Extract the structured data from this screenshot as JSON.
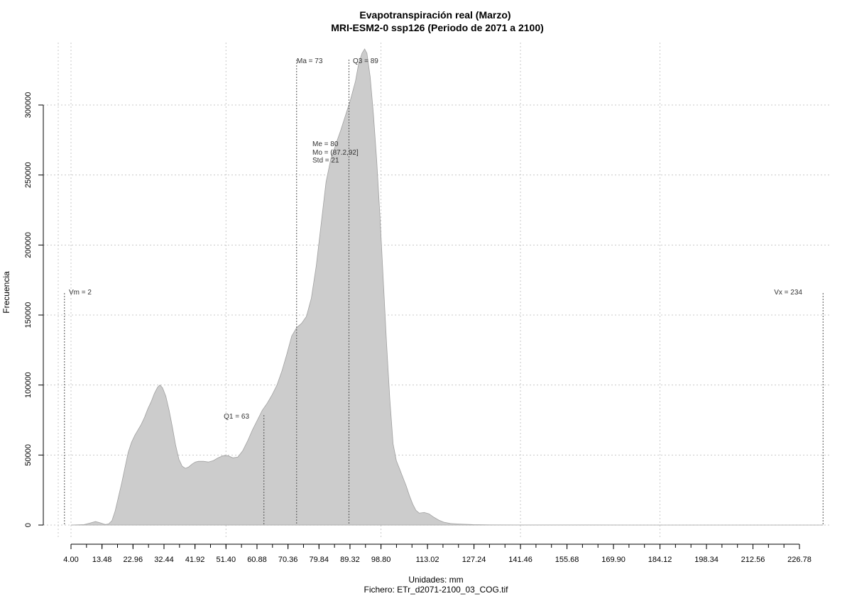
{
  "chart_data": {
    "type": "area",
    "title": "Evapotranspiración real (Marzo)",
    "subtitle": "MRI-ESM2-0 ssp126 (Periodo de 2071 a 2100)",
    "xlabel": "Unidades: mm",
    "file_label": "Fichero: ETr_d2071-2100_03_COG.tif",
    "ylabel": "Frecuencia",
    "xlim": [
      -1.5,
      235.5
    ],
    "ylim": [
      0,
      340000
    ],
    "x_ticks": [
      "4.00",
      "13.48",
      "22.96",
      "32.44",
      "41.92",
      "51.40",
      "60.88",
      "70.36",
      "79.84",
      "89.32",
      "98.80",
      "113.02",
      "127.24",
      "141.46",
      "155.68",
      "169.90",
      "184.12",
      "198.34",
      "212.56",
      "226.78"
    ],
    "y_ticks": [
      "0",
      "50000",
      "100000",
      "150000",
      "200000",
      "250000",
      "300000"
    ],
    "grid": true,
    "area_color": "#cccccc",
    "series": [
      {
        "points": [
          [
            4,
            0
          ],
          [
            8,
            300
          ],
          [
            10,
            1500
          ],
          [
            11.5,
            2500
          ],
          [
            13,
            1500
          ],
          [
            14.5,
            400
          ],
          [
            15.5,
            800
          ],
          [
            16.5,
            3000
          ],
          [
            17.5,
            10000
          ],
          [
            18.5,
            20000
          ],
          [
            19.5,
            30000
          ],
          [
            20.5,
            41000
          ],
          [
            21.5,
            52000
          ],
          [
            22.5,
            59000
          ],
          [
            23.5,
            64000
          ],
          [
            24.5,
            68000
          ],
          [
            25.5,
            72000
          ],
          [
            26.5,
            77000
          ],
          [
            27.5,
            83000
          ],
          [
            28.5,
            88000
          ],
          [
            29.5,
            94000
          ],
          [
            30.5,
            98500
          ],
          [
            31.2,
            100000
          ],
          [
            32,
            98000
          ],
          [
            33,
            92000
          ],
          [
            34,
            82000
          ],
          [
            35,
            70000
          ],
          [
            36,
            57000
          ],
          [
            37,
            47000
          ],
          [
            38,
            42000
          ],
          [
            39,
            40500
          ],
          [
            40,
            41500
          ],
          [
            41,
            43500
          ],
          [
            42,
            45000
          ],
          [
            43,
            45500
          ],
          [
            44.5,
            45500
          ],
          [
            46,
            45000
          ],
          [
            47.5,
            46000
          ],
          [
            49,
            48000
          ],
          [
            50.5,
            49500
          ],
          [
            52,
            49500
          ],
          [
            53.5,
            48000
          ],
          [
            55,
            48500
          ],
          [
            56.5,
            53000
          ],
          [
            58,
            60000
          ],
          [
            59.5,
            68000
          ],
          [
            61,
            75000
          ],
          [
            62.5,
            82000
          ],
          [
            64,
            87000
          ],
          [
            65.5,
            93000
          ],
          [
            67,
            100000
          ],
          [
            68.5,
            110000
          ],
          [
            70,
            122000
          ],
          [
            71.5,
            135000
          ],
          [
            73,
            141000
          ],
          [
            74.5,
            144000
          ],
          [
            76,
            149000
          ],
          [
            77.5,
            162000
          ],
          [
            79,
            185000
          ],
          [
            80.5,
            215000
          ],
          [
            82,
            245000
          ],
          [
            83.5,
            262000
          ],
          [
            85,
            272000
          ],
          [
            86.5,
            282000
          ],
          [
            88,
            293000
          ],
          [
            89.5,
            304000
          ],
          [
            91,
            317000
          ],
          [
            92,
            330000
          ],
          [
            93,
            337000
          ],
          [
            93.8,
            340000
          ],
          [
            94.5,
            337000
          ],
          [
            95.5,
            320000
          ],
          [
            96.5,
            293000
          ],
          [
            97.5,
            260000
          ],
          [
            98.5,
            220000
          ],
          [
            99.5,
            175000
          ],
          [
            100.5,
            130000
          ],
          [
            101.5,
            90000
          ],
          [
            102.5,
            58000
          ],
          [
            103.5,
            46000
          ],
          [
            104.5,
            40000
          ],
          [
            105.5,
            34000
          ],
          [
            106.5,
            28000
          ],
          [
            107.5,
            21000
          ],
          [
            108.5,
            15000
          ],
          [
            109.5,
            10500
          ],
          [
            110.5,
            8500
          ],
          [
            112,
            9000
          ],
          [
            113.5,
            8000
          ],
          [
            115,
            5500
          ],
          [
            116.5,
            3500
          ],
          [
            118,
            2000
          ],
          [
            120,
            1100
          ],
          [
            123,
            700
          ],
          [
            127,
            300
          ],
          [
            132,
            120
          ],
          [
            140,
            60
          ],
          [
            160,
            25
          ],
          [
            190,
            10
          ],
          [
            234,
            0
          ]
        ]
      }
    ],
    "annotations": {
      "vm": {
        "text": "Vm = 2",
        "x": 2
      },
      "vx": {
        "text": "Vx = 234",
        "x": 234
      },
      "q1": {
        "text": "Q1 = 63",
        "x": 63
      },
      "ma": {
        "text": "Ma = 73",
        "x": 73
      },
      "q3": {
        "text": "Q3 = 89",
        "x": 89
      },
      "me": {
        "text": "Me = 80"
      },
      "mo": {
        "text": "Mo = (87.2,92]"
      },
      "std": {
        "text": "Std = 21"
      }
    }
  }
}
